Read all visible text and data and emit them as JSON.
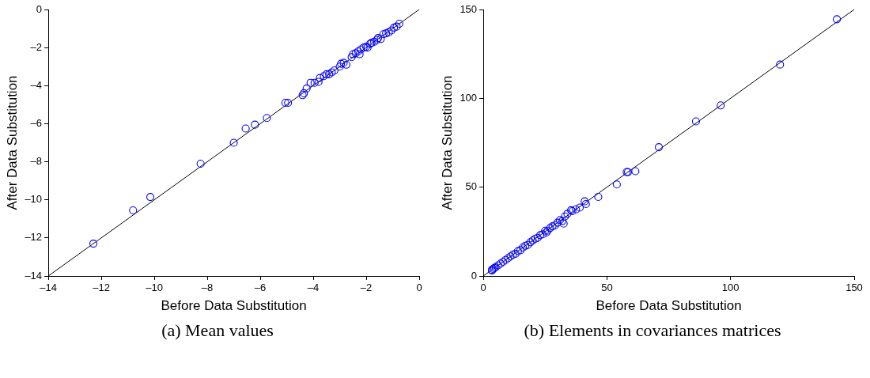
{
  "chart_data": [
    {
      "type": "scatter",
      "xlabel": "Before Data Substitution",
      "ylabel": "After Data Substitution",
      "annotations": [
        "(a) Mean values"
      ],
      "xlim": [
        -14,
        0
      ],
      "ylim": [
        -14,
        0
      ],
      "xticks": [
        {
          "value": -14,
          "label": "–14"
        },
        {
          "value": -12,
          "label": "–12"
        },
        {
          "value": -10,
          "label": "–10"
        },
        {
          "value": -8,
          "label": "–8"
        },
        {
          "value": -6,
          "label": "–6"
        },
        {
          "value": -4,
          "label": "–4"
        },
        {
          "value": -2,
          "label": "–2"
        },
        0
      ],
      "yticks": [
        {
          "value": -14,
          "label": "–14"
        },
        {
          "value": -12,
          "label": "–12"
        },
        {
          "value": -10,
          "label": "–10"
        },
        {
          "value": -8,
          "label": "–8"
        },
        {
          "value": -6,
          "label": "–6"
        },
        {
          "value": -4,
          "label": "–4"
        },
        {
          "value": -2,
          "label": "–2"
        },
        0
      ],
      "grid": false,
      "legend": false,
      "series": [
        {
          "type": "scatter",
          "color": "#0000ff",
          "marker": "circle",
          "x": [
            -12.3,
            -10.8,
            -10.15,
            -8.25,
            -7.0,
            -6.55,
            -6.2,
            -5.75,
            -5.05,
            -4.95,
            -4.4,
            -4.35,
            -4.25,
            -4.1,
            -3.95,
            -3.8,
            -3.75,
            -3.6,
            -3.5,
            -3.4,
            -3.3,
            -3.2,
            -3.0,
            -2.95,
            -2.85,
            -2.75,
            -2.55,
            -2.5,
            -2.4,
            -2.3,
            -2.25,
            -2.2,
            -2.1,
            -2.0,
            -1.95,
            -1.85,
            -1.8,
            -1.7,
            -1.6,
            -1.55,
            -1.45,
            -1.35,
            -1.25,
            -1.15,
            -1.05,
            -0.95,
            -0.85,
            -0.75
          ],
          "values": [
            -12.3,
            -10.55,
            -9.85,
            -8.1,
            -7.0,
            -6.25,
            -6.05,
            -5.7,
            -4.9,
            -4.9,
            -4.5,
            -4.4,
            -4.15,
            -3.85,
            -3.85,
            -3.8,
            -3.6,
            -3.5,
            -3.4,
            -3.4,
            -3.3,
            -3.2,
            -3.0,
            -2.85,
            -2.8,
            -2.9,
            -2.5,
            -2.35,
            -2.3,
            -2.2,
            -2.35,
            -2.1,
            -2.0,
            -1.95,
            -2.0,
            -1.8,
            -1.75,
            -1.7,
            -1.6,
            -1.5,
            -1.55,
            -1.3,
            -1.25,
            -1.2,
            -1.1,
            -0.95,
            -0.9,
            -0.75
          ]
        },
        {
          "type": "line",
          "color": "#000000",
          "marker": "none",
          "line_style": "solid",
          "x": [
            -14,
            0
          ],
          "values": [
            -14,
            0
          ]
        }
      ]
    },
    {
      "type": "scatter",
      "xlabel": "Before Data Substitution",
      "ylabel": "After Data Substitution",
      "annotations": [
        "(b) Elements in covariances matrices"
      ],
      "xlim": [
        0,
        150
      ],
      "ylim": [
        0,
        150
      ],
      "xticks": [
        0,
        50,
        100,
        150
      ],
      "yticks": [
        0,
        50,
        100,
        150
      ],
      "grid": false,
      "legend": false,
      "series": [
        {
          "type": "scatter",
          "color": "#0000ff",
          "marker": "circle",
          "x": [
            143,
            120,
            96,
            86,
            71,
            61.5,
            58.5,
            58,
            54,
            46.5,
            41,
            41.5,
            39,
            37.5,
            36,
            35.5,
            34,
            33,
            32,
            31,
            30,
            29,
            28,
            27,
            26,
            25,
            24,
            23,
            22,
            21,
            20,
            19,
            18,
            17,
            16,
            15,
            14,
            13,
            12,
            11,
            10,
            9,
            8,
            7,
            6,
            5,
            4.5,
            4,
            3.5,
            3.5,
            25.5,
            32.5
          ],
          "values": [
            144.5,
            119,
            96,
            87,
            72.5,
            59,
            58.5,
            58.5,
            51.5,
            44.5,
            42,
            40.5,
            38.5,
            37.5,
            36.5,
            37,
            35,
            33.5,
            31,
            31.5,
            30,
            28.5,
            28,
            27,
            25.5,
            25.5,
            23.5,
            23,
            21.5,
            21,
            20,
            19,
            17.5,
            17,
            16,
            14.5,
            14,
            12.5,
            12,
            11,
            10,
            9,
            8,
            7,
            6,
            5,
            4.5,
            4,
            3.5,
            3,
            24.5,
            29.5
          ]
        },
        {
          "type": "line",
          "color": "#000000",
          "marker": "none",
          "line_style": "solid",
          "x": [
            0,
            150
          ],
          "values": [
            0,
            150
          ]
        }
      ]
    }
  ]
}
